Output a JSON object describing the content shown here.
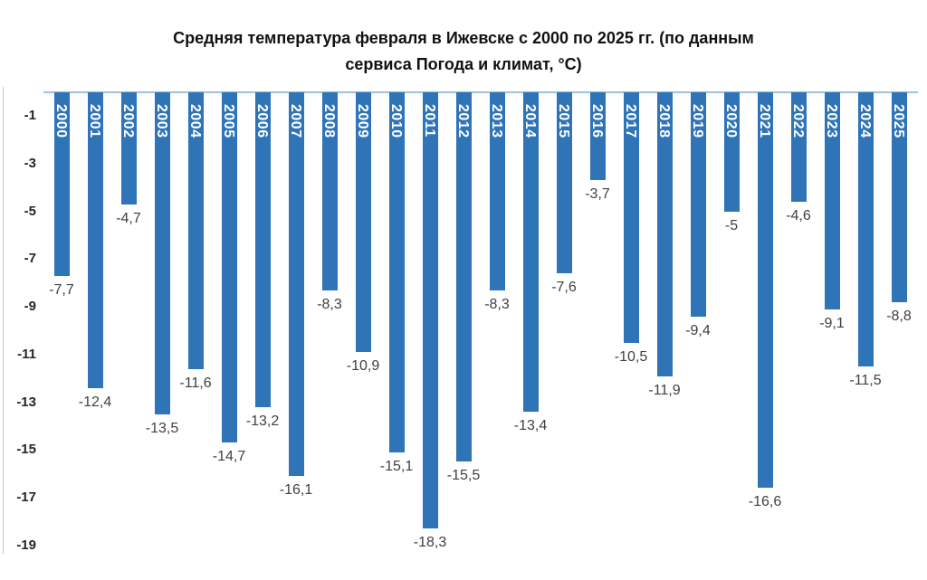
{
  "header": {
    "title_line1": "Средняя температура февраля в Ижевске с 2000 по 2025 гг. (по данным",
    "title_line2": "сервиса Погода и климат, °C)"
  },
  "chart_data": {
    "type": "bar",
    "title": "Средняя температура февраля в Ижевске с 2000 по 2025 гг. (по данным сервиса Погода и климат, °C)",
    "categories": [
      "2000",
      "2001",
      "2002",
      "2003",
      "2004",
      "2005",
      "2006",
      "2007",
      "2008",
      "2009",
      "2010",
      "2011",
      "2012",
      "2013",
      "2014",
      "2015",
      "2016",
      "2017",
      "2018",
      "2019",
      "2020",
      "2021",
      "2022",
      "2023",
      "2024",
      "2025"
    ],
    "values": [
      -7.7,
      -12.4,
      -4.7,
      -13.5,
      -11.6,
      -14.7,
      -13.2,
      -16.1,
      -8.3,
      -10.9,
      -15.1,
      -18.3,
      -15.5,
      -8.3,
      -13.4,
      -7.6,
      -3.7,
      -10.5,
      -11.9,
      -9.4,
      -5,
      -16.6,
      -4.6,
      -9.1,
      -11.5,
      -8.8
    ],
    "value_labels": [
      "-7,7",
      "-12,4",
      "-4,7",
      "-13,5",
      "-11,6",
      "-14,7",
      "-13,2",
      "-16,1",
      "-8,3",
      "-10,9",
      "-15,1",
      "-18,3",
      "-15,5",
      "-8,3",
      "-13,4",
      "-7,6",
      "-3,7",
      "-10,5",
      "-11,9",
      "-9,4",
      "-5",
      "-16,6",
      "-4,6",
      "-9,1",
      "-11,5",
      "-8,8"
    ],
    "xlabel": "",
    "ylabel": "",
    "ylim": [
      -19.5,
      0
    ],
    "yticks": [
      -1,
      -3,
      -5,
      -7,
      -9,
      -11,
      -13,
      -15,
      -17,
      -19
    ],
    "ytick_labels": [
      "-1",
      "-3",
      "-5",
      "-7",
      "-9",
      "-11",
      "-13",
      "-15",
      "-17",
      "-19"
    ],
    "grid": false,
    "legend": false,
    "bar_color": "#2e74b6",
    "axis_line_color": "#9cc2e5",
    "tick_label_color": "#262626",
    "value_label_color": "#404040",
    "category_label_color": "#ffffff"
  }
}
